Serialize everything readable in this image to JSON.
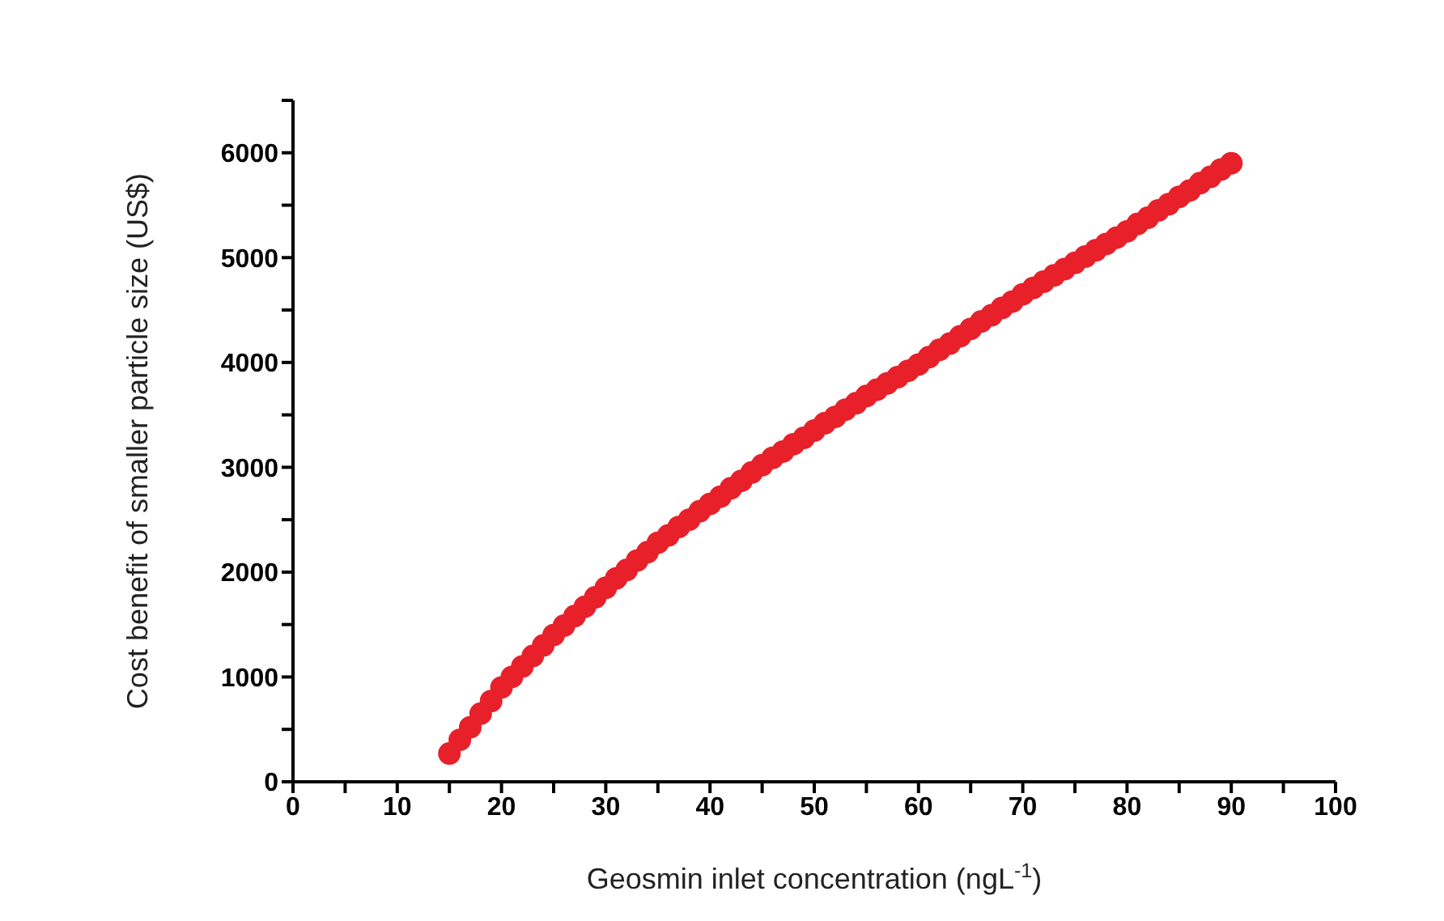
{
  "chart_data": {
    "type": "scatter",
    "xlabel": "Geosmin inlet concentration (ngL$^{-1}$)",
    "ylabel": "Cost benefit of smaller particle size (US$)",
    "xlim": [
      0,
      100
    ],
    "ylim": [
      0,
      6500
    ],
    "xticks": [
      0,
      {
        "value": 5,
        "label": null
      },
      10,
      {
        "value": 15,
        "label": null
      },
      20,
      {
        "value": 25,
        "label": null
      },
      30,
      {
        "value": 35,
        "label": null
      },
      40,
      {
        "value": 45,
        "label": null
      },
      50,
      {
        "value": 55,
        "label": null
      },
      60,
      {
        "value": 65,
        "label": null
      },
      70,
      {
        "value": 75,
        "label": null
      },
      80,
      {
        "value": 85,
        "label": null
      },
      90,
      {
        "value": 95,
        "label": null
      },
      100
    ],
    "yticks": [
      0,
      {
        "value": 500,
        "label": null
      },
      1000,
      {
        "value": 1500,
        "label": null
      },
      2000,
      {
        "value": 2500,
        "label": null
      },
      3000,
      {
        "value": 3500,
        "label": null
      },
      4000,
      {
        "value": 4500,
        "label": null
      },
      5000,
      {
        "value": 5500,
        "label": null
      },
      6000,
      {
        "value": 6500,
        "label": null
      }
    ],
    "grid": false,
    "legend": false,
    "marker": "circle",
    "x": [
      15,
      16,
      17,
      18,
      19,
      20,
      21,
      22,
      23,
      24,
      25,
      26,
      27,
      28,
      29,
      30,
      31,
      32,
      33,
      34,
      35,
      36,
      37,
      38,
      39,
      40,
      41,
      42,
      43,
      44,
      45,
      46,
      47,
      48,
      49,
      50,
      51,
      52,
      53,
      54,
      55,
      56,
      57,
      58,
      59,
      60,
      61,
      62,
      63,
      64,
      65,
      66,
      67,
      68,
      69,
      70,
      71,
      72,
      73,
      74,
      75,
      76,
      77,
      78,
      79,
      80,
      81,
      82,
      83,
      84,
      85,
      86,
      87,
      88,
      89,
      90
    ],
    "series": [
      {
        "color": "#e8202a",
        "values": [
          270,
          400,
          520,
          650,
          770,
          900,
          1000,
          1100,
          1200,
          1300,
          1400,
          1490,
          1580,
          1670,
          1760,
          1850,
          1940,
          2020,
          2110,
          2190,
          2280,
          2350,
          2430,
          2500,
          2580,
          2650,
          2720,
          2800,
          2870,
          2950,
          3020,
          3090,
          3150,
          3220,
          3280,
          3350,
          3420,
          3480,
          3550,
          3610,
          3680,
          3740,
          3800,
          3860,
          3920,
          3980,
          4050,
          4120,
          4180,
          4250,
          4320,
          4390,
          4450,
          4520,
          4580,
          4650,
          4710,
          4770,
          4830,
          4890,
          4950,
          5010,
          5070,
          5130,
          5190,
          5250,
          5320,
          5380,
          5450,
          5510,
          5580,
          5640,
          5710,
          5770,
          5840,
          5900
        ]
      }
    ]
  }
}
